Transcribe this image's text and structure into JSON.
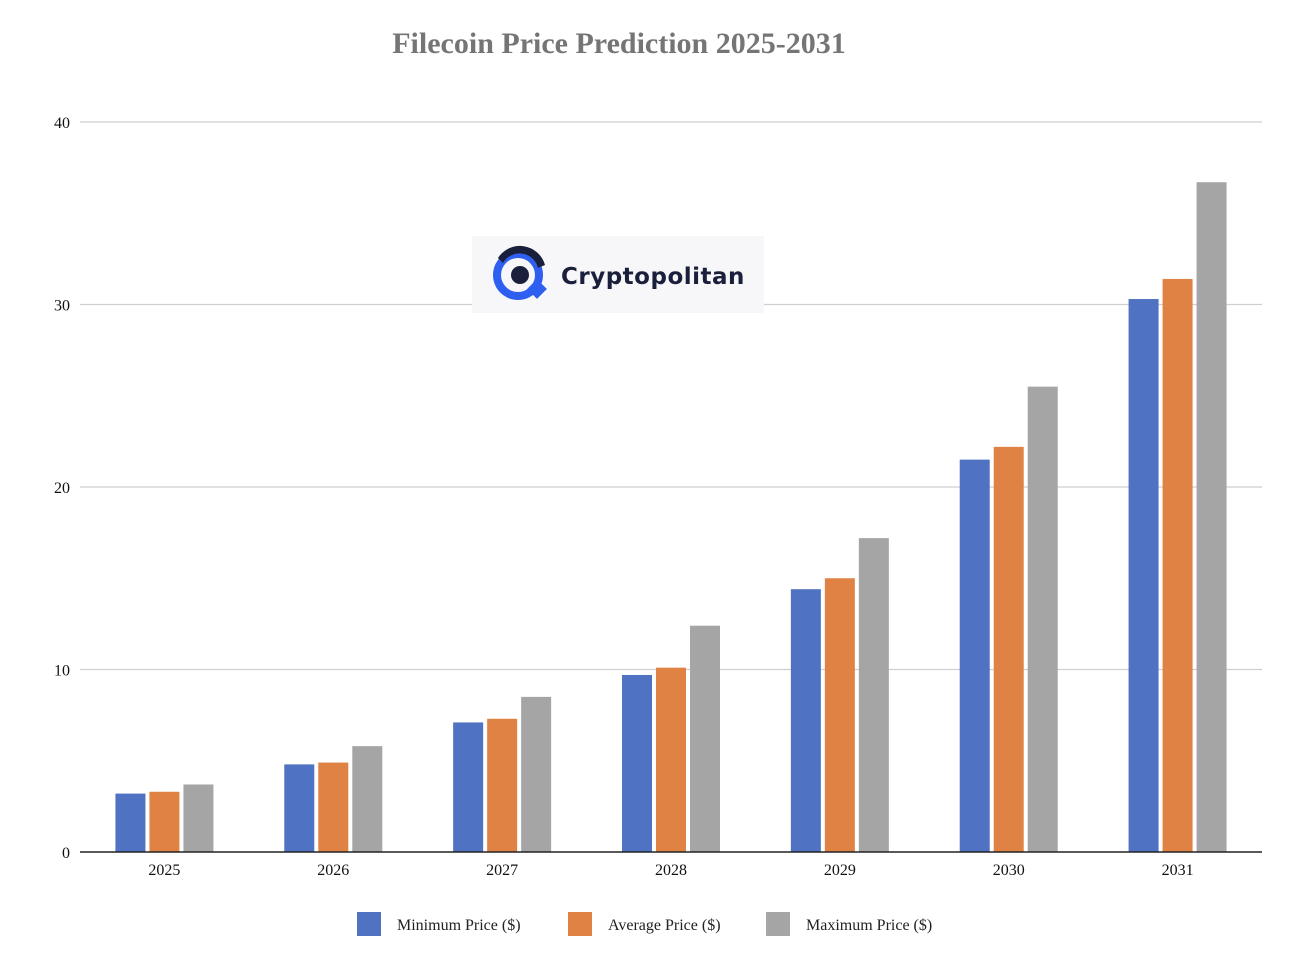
{
  "chart_data": {
    "type": "bar",
    "title": "Filecoin Price Prediction 2025-2031",
    "xlabel": "",
    "ylabel": "",
    "categories": [
      "2025",
      "2026",
      "2027",
      "2028",
      "2029",
      "2030",
      "2031"
    ],
    "ylim": [
      0,
      40
    ],
    "yticks": [
      "0",
      "10",
      "20",
      "30",
      "40"
    ],
    "grid": true,
    "legend_position": "bottom",
    "series": [
      {
        "name": "Minimum Price ($)",
        "color": "#4f72c2",
        "values": [
          3.2,
          4.8,
          7.1,
          9.7,
          14.4,
          21.5,
          30.3
        ]
      },
      {
        "name": "Average Price ($)",
        "color": "#df8243",
        "values": [
          3.3,
          4.9,
          7.3,
          10.1,
          15.0,
          22.2,
          31.4
        ]
      },
      {
        "name": "Maximum Price ($)",
        "color": "#a5a5a5",
        "values": [
          3.7,
          5.8,
          8.5,
          12.4,
          17.2,
          25.5,
          36.7
        ]
      }
    ],
    "watermark": "Cryptopolitan"
  }
}
